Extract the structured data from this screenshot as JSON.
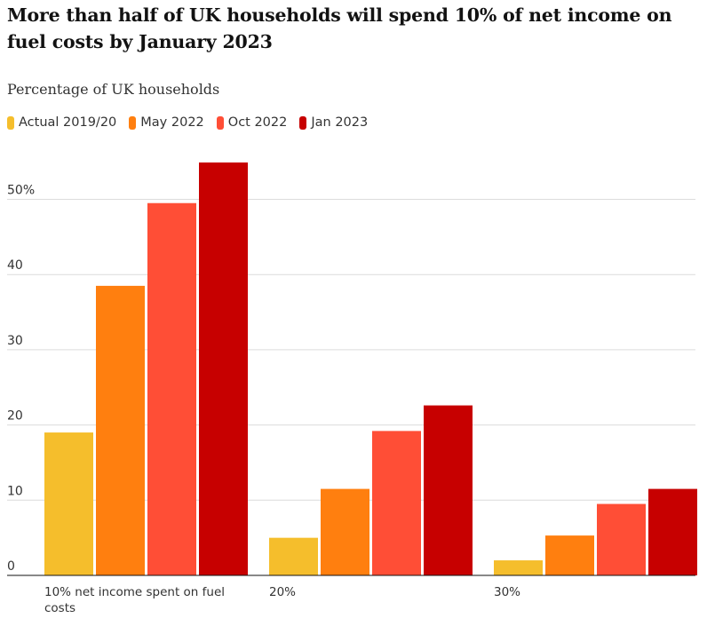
{
  "chart_data": {
    "type": "bar",
    "title": "More than half of UK households will spend 10% of net income on fuel costs by January 2023",
    "subtitle": "Percentage of UK households",
    "categories": [
      "10% net income spent on fuel costs",
      "20%",
      "30%"
    ],
    "series": [
      {
        "name": "Actual 2019/20",
        "color": "#f5be2c",
        "values": [
          19,
          5,
          2
        ]
      },
      {
        "name": "May 2022",
        "color": "#ff7f0f",
        "values": [
          38.5,
          11.5,
          5.3
        ]
      },
      {
        "name": "Oct 2022",
        "color": "#ff4e36",
        "values": [
          49.5,
          19.2,
          9.5
        ]
      },
      {
        "name": "Jan 2023",
        "color": "#c70000",
        "values": [
          54.9,
          22.6,
          11.5
        ]
      }
    ],
    "yticks": [
      0,
      10,
      20,
      30,
      40,
      50
    ],
    "ytick_labels": [
      "0",
      "10",
      "20",
      "30",
      "40",
      "50%"
    ],
    "ylim": [
      0,
      58
    ],
    "grid": true,
    "legend_position": "top-left"
  }
}
